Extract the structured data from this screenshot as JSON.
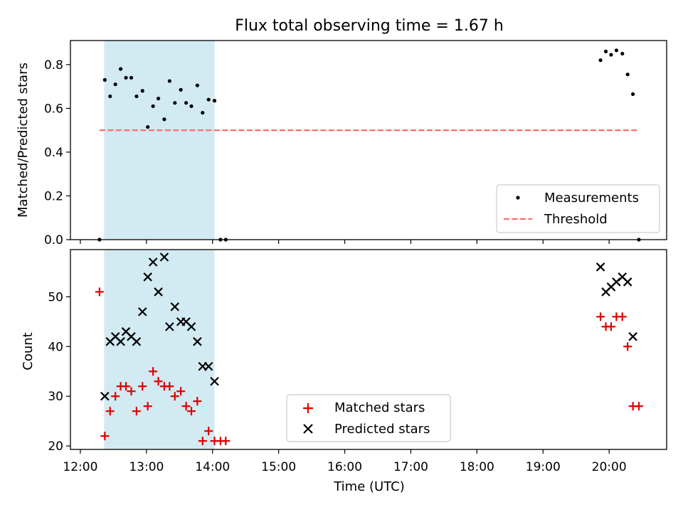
{
  "chart_data": {
    "type": "scatter",
    "title": "Flux total observing time = 1.67 h",
    "xlabel": "Time (UTC)",
    "x_ticks": [
      "12:00",
      "13:00",
      "14:00",
      "15:00",
      "16:00",
      "17:00",
      "18:00",
      "19:00",
      "20:00"
    ],
    "x_tick_hours": [
      12,
      13,
      14,
      15,
      16,
      17,
      18,
      19,
      20
    ],
    "xlim_hours": [
      11.85,
      20.87
    ],
    "shaded_interval_hours": [
      12.36,
      14.03
    ],
    "colors": {
      "shade": "#add8e6",
      "threshold": "#ff6b6b",
      "matched": "#e00000",
      "predicted": "#000000",
      "measurements": "#000000"
    },
    "top": {
      "ylabel": "Matched/Predicted stars",
      "ylim": [
        0,
        0.91
      ],
      "y_ticks": [
        "0.0",
        "0.2",
        "0.4",
        "0.6",
        "0.8"
      ],
      "y_tick_values": [
        0,
        0.2,
        0.4,
        0.6,
        0.8
      ],
      "legend_position": "lower-right",
      "threshold": {
        "name": "Threshold",
        "value": 0.5,
        "x_range_hours": [
          12.29,
          20.42
        ]
      },
      "series": [
        {
          "name": "Measurements",
          "x_hours": [
            12.29,
            12.37,
            12.45,
            12.53,
            12.61,
            12.69,
            12.77,
            12.85,
            12.94,
            13.02,
            13.1,
            13.18,
            13.27,
            13.35,
            13.43,
            13.52,
            13.6,
            13.68,
            13.77,
            13.85,
            13.94,
            14.03,
            14.12,
            14.2,
            19.87,
            19.95,
            20.03,
            20.11,
            20.2,
            20.28,
            20.36,
            20.45
          ],
          "values": [
            0.0,
            0.73,
            0.655,
            0.71,
            0.78,
            0.74,
            0.74,
            0.655,
            0.68,
            0.515,
            0.61,
            0.645,
            0.55,
            0.725,
            0.625,
            0.685,
            0.625,
            0.61,
            0.705,
            0.58,
            0.64,
            0.635,
            0.0,
            0.0,
            0.82,
            0.86,
            0.845,
            0.865,
            0.85,
            0.755,
            0.665,
            0.0
          ]
        }
      ]
    },
    "bottom": {
      "ylabel": "Count",
      "ylim": [
        19.3,
        59.5
      ],
      "y_ticks": [
        "20",
        "30",
        "40",
        "50"
      ],
      "y_tick_values": [
        20,
        30,
        40,
        50
      ],
      "legend_position": "lower-center",
      "series": [
        {
          "name": "Matched stars",
          "marker": "plus",
          "x_hours": [
            12.29,
            12.37,
            12.45,
            12.53,
            12.61,
            12.69,
            12.77,
            12.85,
            12.94,
            13.02,
            13.1,
            13.18,
            13.27,
            13.35,
            13.43,
            13.52,
            13.6,
            13.68,
            13.77,
            13.85,
            13.94,
            14.03,
            14.12,
            14.2,
            19.87,
            19.95,
            20.03,
            20.11,
            20.2,
            20.28,
            20.36,
            20.45
          ],
          "values": [
            51,
            22,
            27,
            30,
            32,
            32,
            31,
            27,
            32,
            28,
            35,
            33,
            32,
            32,
            30,
            31,
            28,
            27,
            29,
            21,
            23,
            21,
            21,
            21,
            46,
            44,
            44,
            46,
            46,
            40,
            28,
            28
          ]
        },
        {
          "name": "Predicted stars",
          "marker": "x",
          "x_hours": [
            12.37,
            12.45,
            12.53,
            12.61,
            12.69,
            12.77,
            12.85,
            12.94,
            13.02,
            13.1,
            13.18,
            13.27,
            13.35,
            13.43,
            13.52,
            13.6,
            13.68,
            13.77,
            13.85,
            13.94,
            14.03,
            19.87,
            19.95,
            20.03,
            20.11,
            20.2,
            20.28,
            20.36
          ],
          "values": [
            30,
            41,
            42,
            41,
            43,
            42,
            41,
            47,
            54,
            57,
            51,
            58,
            44,
            48,
            45,
            45,
            44,
            41,
            36,
            36,
            33,
            56,
            51,
            52,
            53,
            54,
            53,
            42
          ]
        }
      ]
    }
  }
}
